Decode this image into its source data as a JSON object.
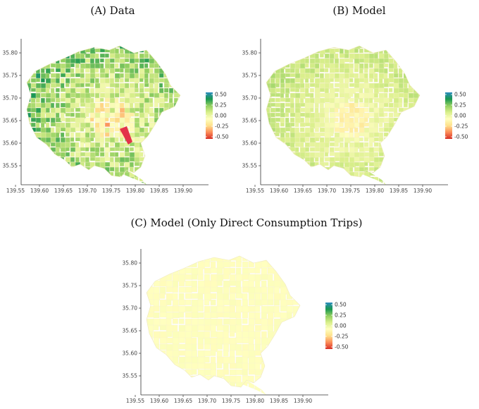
{
  "panels": [
    {
      "id": "A",
      "title": "(A) Data",
      "x_ticks": [
        "139.55",
        "139.60",
        "139.65",
        "139.70",
        "139.75",
        "139.80",
        "139.85",
        "139.90"
      ],
      "y_ticks": [
        "35.80",
        "35.75",
        "35.70",
        "35.65",
        "35.60",
        "35.55"
      ],
      "colorbar": [
        "0.50",
        "0.25",
        "0.00",
        "-0.25",
        "-0.50"
      ]
    },
    {
      "id": "B",
      "title": "(B) Model",
      "x_ticks": [
        "139.55",
        "139.60",
        "139.65",
        "139.70",
        "139.75",
        "139.80",
        "139.85",
        "139.90"
      ],
      "y_ticks": [
        "35.80",
        "35.75",
        "35.70",
        "35.65",
        "35.60",
        "35.55"
      ],
      "colorbar": [
        "0.50",
        "0.25",
        "0.00",
        "-0.25",
        "-0.50"
      ]
    },
    {
      "id": "C",
      "title": "(C) Model (Only Direct Consumption Trips)",
      "x_ticks": [
        "139.55",
        "139.60",
        "139.65",
        "139.70",
        "139.75",
        "139.80",
        "139.85",
        "139.90"
      ],
      "y_ticks": [
        "35.80",
        "35.75",
        "35.70",
        "35.65",
        "35.60",
        "35.55"
      ],
      "colorbar": [
        "0.50",
        "0.25",
        "0.00",
        "-0.25",
        "-0.50"
      ]
    }
  ],
  "colorscale": [
    "#d73027",
    "#fc8d59",
    "#fee08b",
    "#ffffbf",
    "#d9ef8b",
    "#91cf60",
    "#1a9850",
    "#2b8cbe"
  ]
}
